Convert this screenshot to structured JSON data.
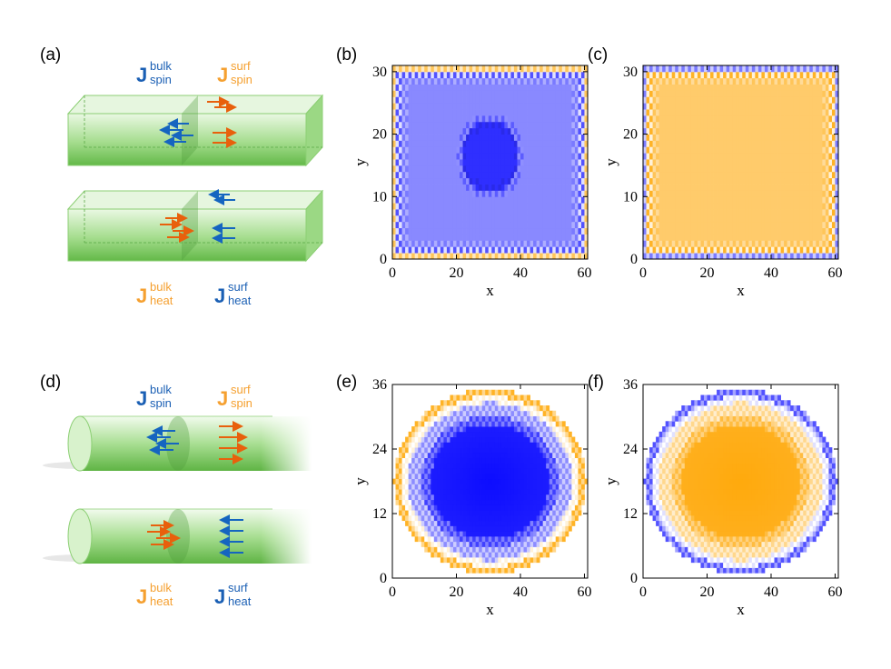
{
  "panels": {
    "a": "(a)",
    "b": "(b)",
    "c": "(c)",
    "d": "(d)",
    "e": "(e)",
    "f": "(f)"
  },
  "diagram_labels": {
    "J": "J",
    "spin": "spin",
    "heat": "heat",
    "bulk": "bulk",
    "surf": "surf"
  },
  "colors": {
    "blue_label": "#1a5fb4",
    "orange_label": "#f5a030",
    "arrow_blue": "#1565c0",
    "arrow_orange": "#e8600c",
    "green_light": "#cdeec1",
    "green_dark": "#6cc051",
    "map_blue": "#3333ff",
    "map_orange": "#ffa500"
  },
  "axes": {
    "xlabel": "x",
    "ylabel": "y",
    "square": {
      "xticks": [
        "0",
        "20",
        "40",
        "60"
      ],
      "yticks": [
        "0",
        "10",
        "20",
        "30"
      ]
    },
    "circle": {
      "xticks": [
        "0",
        "20",
        "40",
        "60"
      ],
      "yticks": [
        "0",
        "12",
        "24",
        "36"
      ]
    }
  }
}
